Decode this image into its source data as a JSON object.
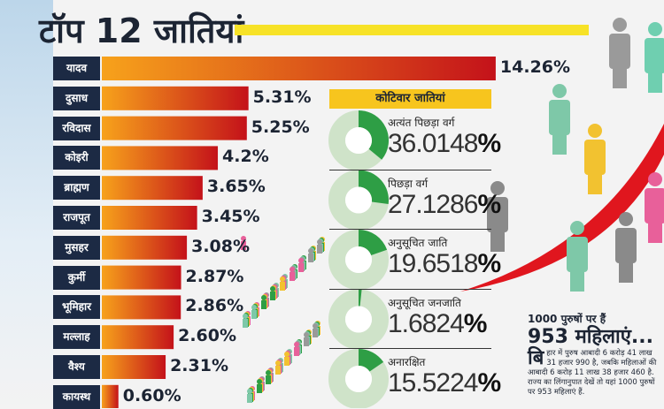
{
  "colors": {
    "bar_start": "#f7a21b",
    "bar_end": "#c4121a",
    "label_bg": "#1c2a44",
    "donut_fill": "#2e9e45",
    "donut_rest": "#cfe3c9",
    "accent_yellow": "#f7e227",
    "swoosh": "#e0161e"
  },
  "chart_data": [
    {
      "type": "bar",
      "orientation": "horizontal",
      "title": "टॉप 12 जातियां",
      "categories": [
        "यादव",
        "दुसाध",
        "रविदास",
        "कोइरी",
        "ब्राह्मण",
        "राजपूत",
        "मुसहर",
        "कुर्मी",
        "भूमिहार",
        "मल्लाह",
        "वैश्य",
        "कायस्थ"
      ],
      "values": [
        14.26,
        5.31,
        5.25,
        4.2,
        3.65,
        3.45,
        3.08,
        2.87,
        2.86,
        2.6,
        2.31,
        0.6
      ],
      "value_labels": [
        "14.26%",
        "5.31%",
        "5.25%",
        "4.2%",
        "3.65%",
        "3.45%",
        "3.08%",
        "2.87%",
        "2.86%",
        "2.60%",
        "2.31%",
        "0.60%"
      ]
    },
    {
      "type": "pie",
      "variant": "donut",
      "title": "कोटिवार जातियां",
      "categories": [
        "अत्यंत पिछड़ा वर्ग",
        "पिछड़ा वर्ग",
        "अनुसूचित जाति",
        "अनुसूचित जनजाति",
        "अनारक्षित"
      ],
      "values": [
        36.0148,
        27.1286,
        19.6518,
        1.6824,
        15.5224
      ],
      "value_labels": [
        "36.0148",
        "27.1286",
        "19.6518",
        "1.6824",
        "15.5224"
      ],
      "unit": "%"
    }
  ],
  "note": {
    "line1": "1000 पुरुषों पर हैं",
    "line2": "953 महिलाएं...",
    "dropcap": "बि",
    "body": "हार में पुरुष आबादी 6 करोड़ 41 लाख 31 हजार 990 है, जबकि महिलाओं की आबादी 6 करोड़ 11 लाख 38 हजार 460 है. राज्य का लिंगानुपात देखें तो यहां 1000 पुरुषों पर 953 महिलाएं हैं."
  }
}
